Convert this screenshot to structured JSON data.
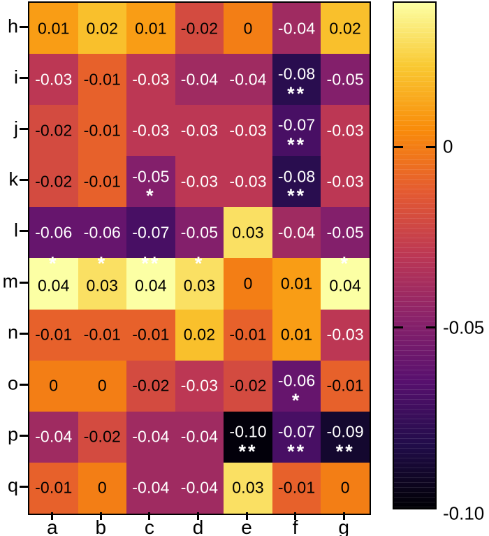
{
  "figure": {
    "background": "#ffffff",
    "border_color": "#000000"
  },
  "chart_data": {
    "type": "heatmap",
    "title": "",
    "xlabel": "",
    "ylabel": "",
    "rows": [
      "h",
      "i",
      "j",
      "k",
      "l",
      "m",
      "n",
      "o",
      "p",
      "q"
    ],
    "columns": [
      "a",
      "b",
      "c",
      "d",
      "e",
      "f",
      "g"
    ],
    "values": [
      [
        0.01,
        0.02,
        0.01,
        -0.02,
        0.0,
        -0.04,
        0.02
      ],
      [
        -0.03,
        -0.01,
        -0.03,
        -0.04,
        -0.04,
        -0.08,
        -0.05
      ],
      [
        -0.02,
        -0.01,
        -0.03,
        -0.03,
        -0.03,
        -0.07,
        -0.03
      ],
      [
        -0.02,
        -0.01,
        -0.05,
        -0.03,
        -0.03,
        -0.08,
        -0.03
      ],
      [
        -0.06,
        -0.06,
        -0.07,
        -0.05,
        0.03,
        -0.04,
        -0.05
      ],
      [
        0.04,
        0.03,
        0.04,
        0.03,
        0.0,
        0.01,
        0.04
      ],
      [
        -0.01,
        -0.01,
        -0.01,
        0.02,
        -0.01,
        0.01,
        -0.03
      ],
      [
        0.0,
        0.0,
        -0.02,
        -0.03,
        -0.02,
        -0.06,
        -0.01
      ],
      [
        -0.04,
        -0.02,
        -0.04,
        -0.04,
        -0.1,
        -0.07,
        -0.09
      ],
      [
        -0.01,
        0.0,
        -0.04,
        -0.04,
        0.03,
        -0.01,
        0.0
      ]
    ],
    "labels": [
      [
        "0.01",
        "0.02",
        "0.01",
        "-0.02",
        "0",
        "-0.04",
        "0.02"
      ],
      [
        "-0.03",
        "-0.01",
        "-0.03",
        "-0.04",
        "-0.04",
        "-0.08",
        "-0.05"
      ],
      [
        "-0.02",
        "-0.01",
        "-0.03",
        "-0.03",
        "-0.03",
        "-0.07",
        "-0.03"
      ],
      [
        "-0.02",
        "-0.01",
        "-0.05",
        "-0.03",
        "-0.03",
        "-0.08",
        "-0.03"
      ],
      [
        "-0.06",
        "-0.06",
        "-0.07",
        "-0.05",
        "0.03",
        "-0.04",
        "-0.05"
      ],
      [
        "0.04",
        "0.03",
        "0.04",
        "0.03",
        "0",
        "0.01",
        "0.04"
      ],
      [
        "-0.01",
        "-0.01",
        "-0.01",
        "0.02",
        "-0.01",
        "0.01",
        "-0.03"
      ],
      [
        "0",
        "0",
        "-0.02",
        "-0.03",
        "-0.02",
        "-0.06",
        "-0.01"
      ],
      [
        "-0.04",
        "-0.02",
        "-0.04",
        "-0.04",
        "-0.10",
        "-0.07",
        "-0.09"
      ],
      [
        "-0.01",
        "0",
        "-0.04",
        "-0.04",
        "0.03",
        "-0.01",
        "0"
      ]
    ],
    "significance": [
      [
        "",
        "",
        "",
        "",
        "",
        "",
        ""
      ],
      [
        "",
        "",
        "",
        "",
        "",
        "**",
        ""
      ],
      [
        "",
        "",
        "",
        "",
        "",
        "**",
        ""
      ],
      [
        "",
        "",
        "*",
        "",
        "",
        "**",
        ""
      ],
      [
        "",
        "",
        "",
        "",
        "",
        "",
        ""
      ],
      [
        "*",
        "*",
        "**",
        "*",
        "",
        "",
        "*"
      ],
      [
        "",
        "",
        "",
        "",
        "",
        "",
        ""
      ],
      [
        "",
        "",
        "",
        "",
        "",
        "*",
        ""
      ],
      [
        "",
        "",
        "",
        "",
        "**",
        "**",
        "**"
      ],
      [
        "",
        "",
        "",
        "",
        "",
        "",
        ""
      ]
    ],
    "significance_placement": [
      "below",
      "below",
      "below",
      "below",
      "below",
      "above",
      "below",
      "below",
      "below",
      "below"
    ],
    "significance_color": "#ffffff",
    "colormap": "inferno",
    "vmin": -0.1,
    "vmax": 0.04,
    "grid": false,
    "legend_position": "right-colorbar",
    "colorbar_ticks": [
      {
        "label": "0",
        "value": 0.0
      },
      {
        "label": "-0.05",
        "value": -0.05
      },
      {
        "label": "-0.10",
        "value": -0.1
      }
    ],
    "colorbar_gradient_top_to_bottom": [
      "#FCFFA4",
      "#F9C932",
      "#F98C0A",
      "#E45A31",
      "#BC3754",
      "#8A226A",
      "#57106E",
      "#210C4A",
      "#000004"
    ],
    "palette": {
      "0.04": {
        "bg": "#FCFFA4",
        "fg": "#000000"
      },
      "0.03": {
        "bg": "#FAE063",
        "fg": "#000000"
      },
      "0.02": {
        "bg": "#F9C02C",
        "fg": "#000000"
      },
      "0.01": {
        "bg": "#F99D15",
        "fg": "#000000"
      },
      "0": {
        "bg": "#F37E15",
        "fg": "#000000"
      },
      "-0.01": {
        "bg": "#E7612B",
        "fg": "#000000"
      },
      "-0.02": {
        "bg": "#D34B40",
        "fg": "#000000"
      },
      "-0.03": {
        "bg": "#BC3754",
        "fg": "#ffffff"
      },
      "-0.04": {
        "bg": "#9F2B61",
        "fg": "#ffffff"
      },
      "-0.05": {
        "bg": "#831F6B",
        "fg": "#ffffff"
      },
      "-0.06": {
        "bg": "#66156D",
        "fg": "#ffffff"
      },
      "-0.07": {
        "bg": "#480F64",
        "fg": "#ffffff"
      },
      "-0.08": {
        "bg": "#290D4F",
        "fg": "#ffffff"
      },
      "-0.09": {
        "bg": "#14082F",
        "fg": "#ffffff"
      },
      "-0.10": {
        "bg": "#02000A",
        "fg": "#ffffff"
      }
    }
  }
}
